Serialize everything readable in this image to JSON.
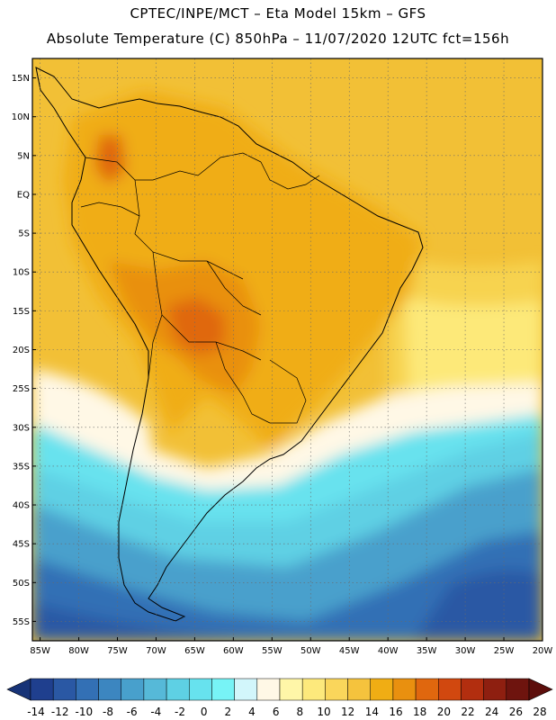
{
  "header": {
    "line1": "CPTEC/INPE/MCT –   Eta Model 15km – GFS",
    "line2": "Absolute Temperature (C) 850hPa – 11/07/2020 12UTC fct=156h"
  },
  "axes": {
    "lat_labels": [
      "15N",
      "10N",
      "5N",
      "EQ",
      "5S",
      "10S",
      "15S",
      "20S",
      "25S",
      "30S",
      "35S",
      "40S",
      "45S",
      "50S",
      "55S"
    ],
    "lon_labels": [
      "85W",
      "80W",
      "75W",
      "70W",
      "65W",
      "60W",
      "55W",
      "50W",
      "45W",
      "40W",
      "35W",
      "30W",
      "25W",
      "20W"
    ]
  },
  "colorbar": {
    "ticks": [
      "-14",
      "-12",
      "-10",
      "-8",
      "-6",
      "-4",
      "-2",
      "0",
      "2",
      "4",
      "6",
      "8",
      "10",
      "12",
      "14",
      "16",
      "18",
      "20",
      "22",
      "24",
      "26",
      "28"
    ],
    "colors": [
      "#1f3f8e",
      "#2a58a4",
      "#3370b5",
      "#3c86c0",
      "#48a0cc",
      "#56b9d8",
      "#5ed0e4",
      "#67e2ee",
      "#77f3f6",
      "#d2f6fb",
      "#fff8e6",
      "#fff6a8",
      "#fde97c",
      "#fad65b",
      "#f5c33d",
      "#f0ad14",
      "#e9900f",
      "#e0670e",
      "#d1480f",
      "#b22e0f",
      "#8e1f10",
      "#6e140e"
    ],
    "left_color": "#173377",
    "right_color": "#5c0e0b"
  },
  "map_colors": {
    "ocean_warm": "#f2c036",
    "ocean_mid": "#f7d34f",
    "ocean_cool": "#fde979",
    "land_warm": "#f0ad14",
    "land_hot": "#e9900f",
    "land_hotter": "#e0670e",
    "pale": "#fff8e6",
    "cold1": "#67e2ee",
    "cold2": "#5ed0e4",
    "cold3": "#48a0cc",
    "cold4": "#3370b5",
    "cold5": "#2a58a4",
    "grid": "#6a6a6a",
    "coast": "#000000"
  }
}
